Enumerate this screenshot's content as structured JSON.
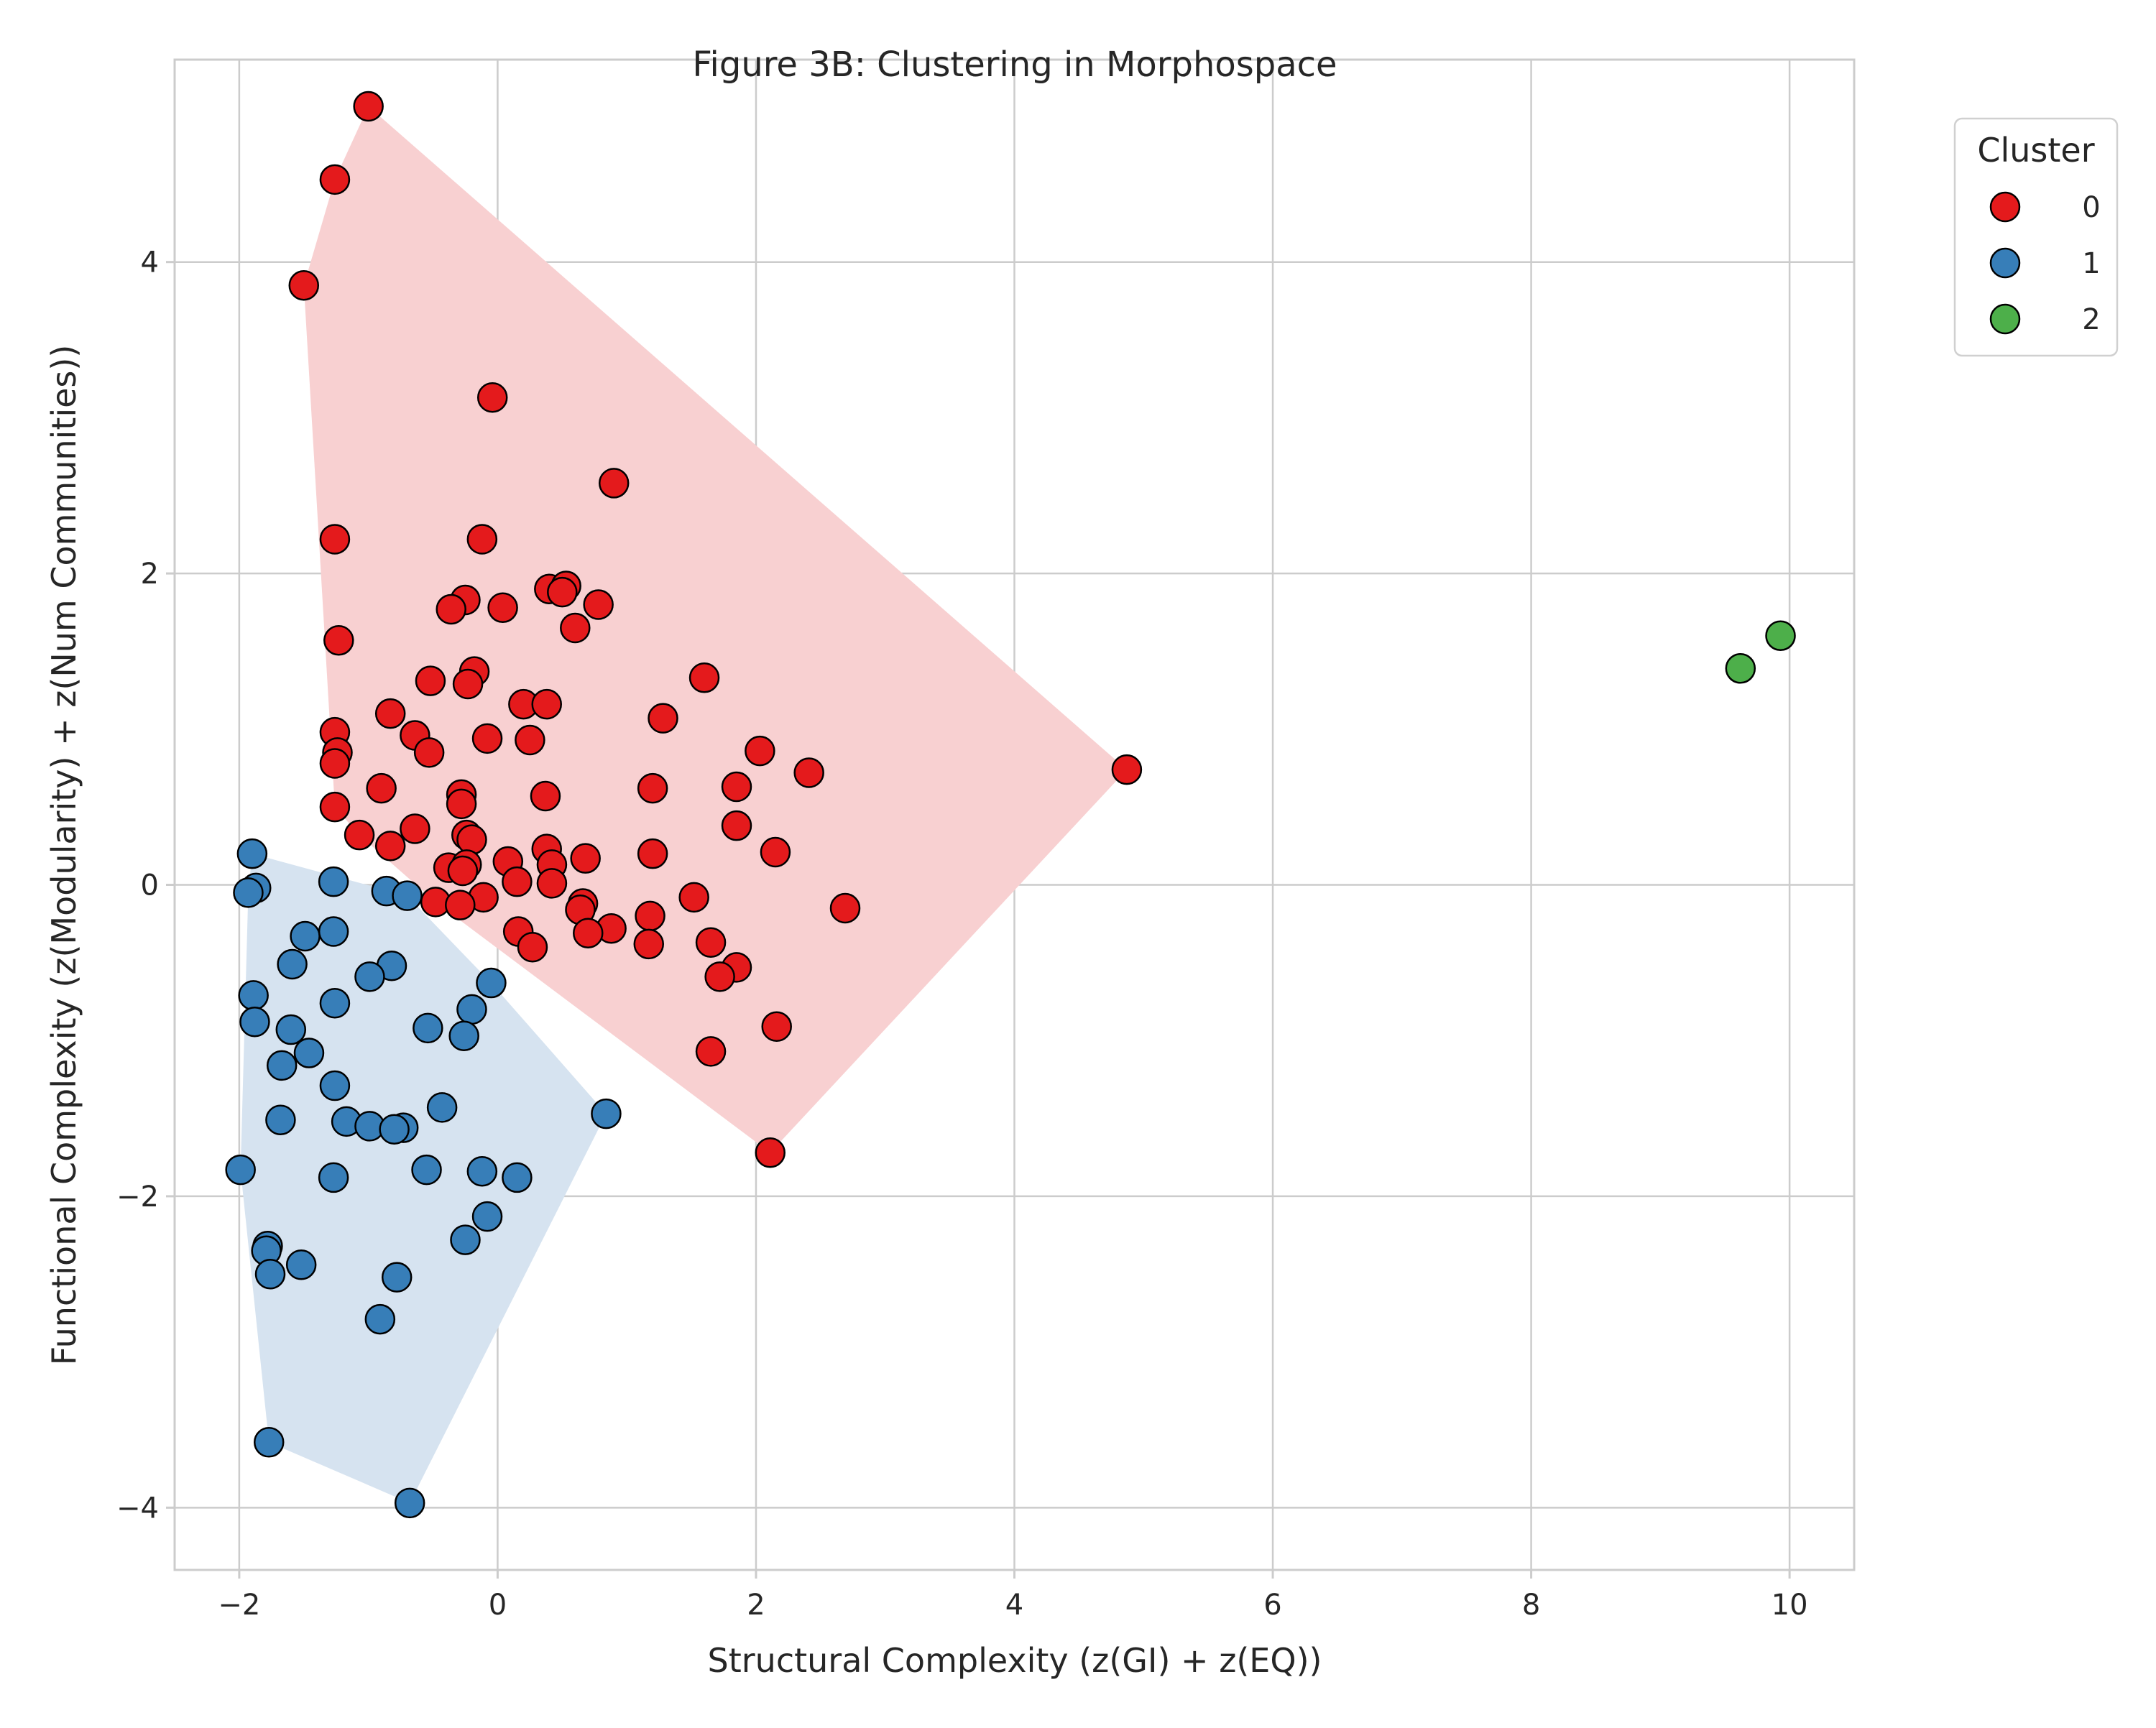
{
  "chart_data": {
    "type": "scatter",
    "title": "Figure 3B: Clustering in Morphospace",
    "xlabel": "Structural Complexity (z(GI) + z(EQ))",
    "ylabel": "Functional Complexity (z(Modularity) + z(Num Communities))",
    "xlim": [
      -2.5,
      10.5
    ],
    "ylim": [
      -4.4,
      5.3
    ],
    "xticks": [
      -2,
      0,
      2,
      4,
      6,
      8,
      10
    ],
    "xtick_labels": [
      "−2",
      "0",
      "2",
      "4",
      "6",
      "8",
      "10"
    ],
    "yticks": [
      -4,
      -2,
      0,
      2,
      4
    ],
    "ytick_labels": [
      "−4",
      "−2",
      "0",
      "2",
      "4"
    ],
    "grid": true,
    "legend": {
      "title": "Cluster",
      "placement": "outside-top-right"
    },
    "hulls": true,
    "series": [
      {
        "name": "0",
        "color": "#e41a1c",
        "hull_color": "#f8d0d1",
        "points": [
          [
            -1.0,
            5.0
          ],
          [
            -1.26,
            4.53
          ],
          [
            -1.5,
            3.85
          ],
          [
            -0.04,
            3.13
          ],
          [
            0.9,
            2.58
          ],
          [
            -1.26,
            2.22
          ],
          [
            -0.12,
            2.22
          ],
          [
            0.4,
            1.9
          ],
          [
            0.53,
            1.92
          ],
          [
            0.5,
            1.88
          ],
          [
            -0.25,
            1.83
          ],
          [
            -0.36,
            1.77
          ],
          [
            0.04,
            1.78
          ],
          [
            0.78,
            1.8
          ],
          [
            0.6,
            1.65
          ],
          [
            -1.23,
            1.57
          ],
          [
            -0.18,
            1.37
          ],
          [
            -0.52,
            1.31
          ],
          [
            -0.23,
            1.29
          ],
          [
            1.6,
            1.33
          ],
          [
            0.2,
            1.16
          ],
          [
            0.38,
            1.16
          ],
          [
            -0.83,
            1.1
          ],
          [
            1.28,
            1.07
          ],
          [
            -1.26,
            0.98
          ],
          [
            -0.64,
            0.96
          ],
          [
            -0.08,
            0.94
          ],
          [
            0.25,
            0.93
          ],
          [
            -1.24,
            0.85
          ],
          [
            -0.53,
            0.85
          ],
          [
            2.03,
            0.86
          ],
          [
            -1.26,
            0.78
          ],
          [
            4.87,
            0.74
          ],
          [
            2.41,
            0.72
          ],
          [
            1.85,
            0.63
          ],
          [
            -0.9,
            0.62
          ],
          [
            1.2,
            0.62
          ],
          [
            -0.28,
            0.58
          ],
          [
            0.37,
            0.57
          ],
          [
            -0.28,
            0.52
          ],
          [
            -1.26,
            0.5
          ],
          [
            1.85,
            0.38
          ],
          [
            -0.64,
            0.36
          ],
          [
            -1.07,
            0.32
          ],
          [
            -0.24,
            0.32
          ],
          [
            -0.2,
            0.29
          ],
          [
            -0.83,
            0.25
          ],
          [
            0.38,
            0.23
          ],
          [
            1.2,
            0.2
          ],
          [
            2.15,
            0.21
          ],
          [
            0.68,
            0.17
          ],
          [
            0.08,
            0.15
          ],
          [
            0.42,
            0.13
          ],
          [
            -0.38,
            0.11
          ],
          [
            -0.24,
            0.13
          ],
          [
            -0.27,
            0.09
          ],
          [
            0.15,
            0.02
          ],
          [
            0.42,
            0.01
          ],
          [
            -0.11,
            -0.08
          ],
          [
            -0.48,
            -0.11
          ],
          [
            -0.29,
            -0.13
          ],
          [
            0.66,
            -0.12
          ],
          [
            1.52,
            -0.08
          ],
          [
            0.64,
            -0.16
          ],
          [
            2.69,
            -0.15
          ],
          [
            1.18,
            -0.2
          ],
          [
            0.88,
            -0.28
          ],
          [
            0.7,
            -0.31
          ],
          [
            0.16,
            -0.3
          ],
          [
            1.65,
            -0.37
          ],
          [
            1.17,
            -0.38
          ],
          [
            0.27,
            -0.4
          ],
          [
            1.85,
            -0.53
          ],
          [
            1.72,
            -0.59
          ],
          [
            2.16,
            -0.91
          ],
          [
            1.65,
            -1.07
          ],
          [
            2.11,
            -1.72
          ]
        ]
      },
      {
        "name": "1",
        "color": "#377eb8",
        "hull_color": "#d6e3f0",
        "points": [
          [
            -1.9,
            0.2
          ],
          [
            -1.87,
            -0.02
          ],
          [
            -1.93,
            -0.05
          ],
          [
            -1.27,
            0.02
          ],
          [
            -0.86,
            -0.04
          ],
          [
            -0.7,
            -0.07
          ],
          [
            -1.49,
            -0.33
          ],
          [
            -1.27,
            -0.3
          ],
          [
            -1.59,
            -0.51
          ],
          [
            -0.82,
            -0.52
          ],
          [
            -0.99,
            -0.59
          ],
          [
            -0.05,
            -0.63
          ],
          [
            -1.89,
            -0.71
          ],
          [
            -1.26,
            -0.76
          ],
          [
            -0.2,
            -0.8
          ],
          [
            -1.88,
            -0.88
          ],
          [
            -1.6,
            -0.93
          ],
          [
            -0.54,
            -0.92
          ],
          [
            -0.26,
            -0.97
          ],
          [
            -1.46,
            -1.08
          ],
          [
            -1.67,
            -1.16
          ],
          [
            -1.26,
            -1.29
          ],
          [
            -0.43,
            -1.43
          ],
          [
            0.84,
            -1.47
          ],
          [
            -1.68,
            -1.51
          ],
          [
            -1.17,
            -1.52
          ],
          [
            -0.99,
            -1.55
          ],
          [
            -0.73,
            -1.56
          ],
          [
            -0.8,
            -1.57
          ],
          [
            -1.99,
            -1.83
          ],
          [
            -0.55,
            -1.83
          ],
          [
            -0.12,
            -1.84
          ],
          [
            -1.27,
            -1.88
          ],
          [
            0.15,
            -1.88
          ],
          [
            -0.08,
            -2.13
          ],
          [
            -0.25,
            -2.28
          ],
          [
            -1.78,
            -2.32
          ],
          [
            -1.79,
            -2.35
          ],
          [
            -1.52,
            -2.44
          ],
          [
            -1.76,
            -2.5
          ],
          [
            -0.78,
            -2.52
          ],
          [
            -0.91,
            -2.79
          ],
          [
            -1.77,
            -3.58
          ],
          [
            -0.68,
            -3.97
          ]
        ]
      },
      {
        "name": "2",
        "color": "#4daf4a",
        "hull_color": "#d8efd6",
        "points": [
          [
            9.62,
            1.39
          ],
          [
            9.93,
            1.6
          ]
        ]
      }
    ]
  }
}
